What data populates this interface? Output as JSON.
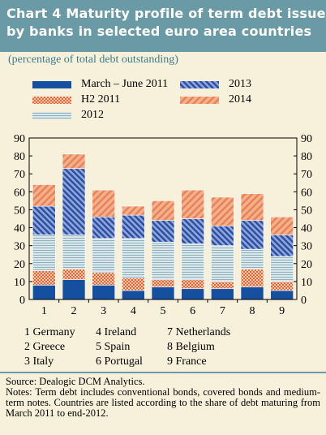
{
  "header": {
    "title_line1": "Chart 4 Maturity profile of term debt issued",
    "title_line2": "by banks in selected euro area countries"
  },
  "subtitle": "(percentage of total debt outstanding)",
  "colors": {
    "frame_bg": "#f7f1db",
    "header_bg": "#6a9aa5",
    "series_march_june_2011": "#1550a0",
    "series_h2_2011": "#e8825a",
    "series_2012": "#bcd0d8",
    "series_2013": "#3d5ea8",
    "series_2014": "#e8825a"
  },
  "legend": [
    {
      "key": "s1",
      "label": "March – June 2011"
    },
    {
      "key": "s2",
      "label": "H2 2011"
    },
    {
      "key": "s3",
      "label": "2012"
    },
    {
      "key": "s4",
      "label": "2013"
    },
    {
      "key": "s5",
      "label": "2014"
    }
  ],
  "country_list": [
    "1 Germany",
    "2 Greece",
    "3 Italy",
    "4 Ireland",
    "5 Spain",
    "6 Portugal",
    "7 Netherlands",
    "8 Belgium",
    "9 France"
  ],
  "notes": {
    "source": "Source: Dealogic DCM Analytics.",
    "text": "Notes: Term debt includes conventional bonds, covered bonds and medium-term notes. Countries are listed according to the share of debt maturing from March 2011 to end-2012."
  },
  "chart_data": {
    "type": "bar",
    "stacked": true,
    "categories": [
      "1",
      "2",
      "3",
      "4",
      "5",
      "6",
      "7",
      "8",
      "9"
    ],
    "ylim": [
      0,
      90
    ],
    "yticks": [
      0,
      10,
      20,
      30,
      40,
      50,
      60,
      70,
      80,
      90
    ],
    "grid": false,
    "legend_position": "top",
    "series": [
      {
        "name": "March – June 2011",
        "values": [
          8,
          11,
          8,
          5,
          7,
          6,
          6,
          7,
          5
        ]
      },
      {
        "name": "H2 2011",
        "values": [
          8,
          6,
          7,
          7,
          4,
          5,
          4,
          10,
          5
        ]
      },
      {
        "name": "2012",
        "values": [
          20,
          19,
          19,
          22,
          21,
          20,
          20,
          11,
          14
        ]
      },
      {
        "name": "2013",
        "values": [
          16,
          37,
          12,
          13,
          12,
          14,
          11,
          16,
          12
        ]
      },
      {
        "name": "2014",
        "values": [
          12,
          8,
          15,
          5,
          11,
          16,
          16,
          15,
          10
        ]
      }
    ]
  }
}
